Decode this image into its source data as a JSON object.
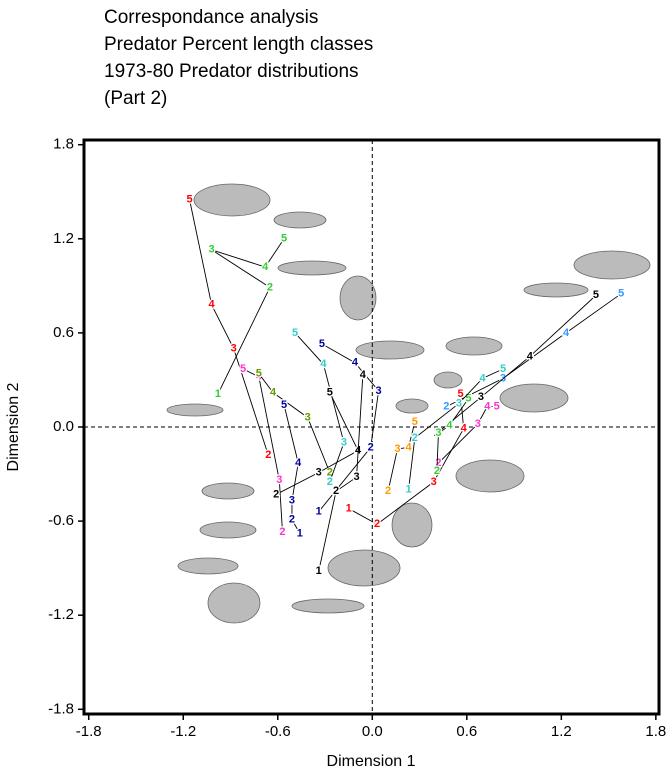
{
  "chart_data": {
    "type": "scatter",
    "title": [
      "Correspondance analysis",
      "Predator Percent length classes",
      "1973-80 Predator distributions",
      "(Part 2)"
    ],
    "xlabel": "Dimension 1",
    "ylabel": "Dimension 2",
    "xlim": [
      -1.83,
      1.82
    ],
    "ylim": [
      -1.83,
      1.83
    ],
    "xticks": [
      -1.8,
      -1.2,
      -0.6,
      {
        "value": 0,
        "label": "0.0"
      },
      0.6,
      1.2,
      1.8
    ],
    "yticks": [
      -1.8,
      -1.2,
      -0.6,
      {
        "value": 0,
        "label": "0.0"
      },
      0.6,
      1.2,
      1.8
    ],
    "series": [
      {
        "color": "#ff0000",
        "labels": [
          "5",
          "4",
          "3",
          "2"
        ],
        "x": [
          -1.16,
          -1.02,
          -0.88,
          -0.66
        ],
        "y": [
          1.45,
          0.78,
          0.5,
          -0.18
        ]
      },
      {
        "color": "#33cc33",
        "labels": [
          "1",
          "2",
          "3",
          "4",
          "5"
        ],
        "x": [
          -0.98,
          -0.65,
          -1.02,
          -0.68,
          -0.56
        ],
        "y": [
          0.21,
          0.89,
          1.13,
          1.02,
          1.2
        ]
      },
      {
        "color": "#ff33cc",
        "labels": [
          "2",
          "3",
          "4",
          "5"
        ],
        "x": [
          -0.57,
          -0.59,
          -0.72,
          -0.82
        ],
        "y": [
          -0.67,
          -0.34,
          0.32,
          0.37
        ]
      },
      {
        "color": "#669900",
        "labels": [
          "2",
          "3",
          "4",
          "5"
        ],
        "x": [
          -0.27,
          -0.41,
          -0.63,
          -0.72
        ],
        "y": [
          -0.29,
          0.06,
          0.22,
          0.34
        ]
      },
      {
        "color": "#000099",
        "labels": [
          "1",
          "2",
          "3",
          "4",
          "5"
        ],
        "x": [
          -0.46,
          -0.51,
          -0.51,
          -0.47,
          -0.56
        ],
        "y": [
          -0.68,
          -0.59,
          -0.47,
          -0.23,
          0.14
        ]
      },
      {
        "color": "#33cccc",
        "labels": [
          "2",
          "3",
          "4",
          "5"
        ],
        "x": [
          -0.27,
          -0.18,
          -0.31,
          -0.49
        ],
        "y": [
          -0.35,
          -0.1,
          0.4,
          0.6
        ]
      },
      {
        "color": "#000000",
        "labels": [
          "2",
          "3",
          "4",
          "5"
        ],
        "x": [
          -0.61,
          -0.34,
          -0.09,
          -0.27
        ],
        "y": [
          -0.43,
          -0.29,
          -0.15,
          0.22
        ]
      },
      {
        "color": "#000099",
        "labels": [
          "1",
          "2",
          "3",
          "4",
          "5"
        ],
        "x": [
          -0.34,
          -0.01,
          0.04,
          -0.11,
          -0.32
        ],
        "y": [
          -0.54,
          -0.13,
          0.23,
          0.41,
          0.53
        ]
      },
      {
        "color": "#000000",
        "labels": [
          "1",
          "2",
          "3",
          "4"
        ],
        "x": [
          -0.34,
          -0.23,
          -0.1,
          -0.06
        ],
        "y": [
          -0.92,
          -0.41,
          -0.32,
          0.33
        ]
      },
      {
        "color": "#ff0000",
        "labels": [
          "1",
          "2",
          "3",
          "4",
          "5"
        ],
        "x": [
          -0.15,
          0.03,
          0.39,
          0.58,
          0.56
        ],
        "y": [
          -0.52,
          -0.62,
          -0.35,
          -0.01,
          0.21
        ]
      },
      {
        "color": "#ff9900",
        "labels": [
          "2",
          "3",
          "4",
          "5"
        ],
        "x": [
          0.1,
          0.16,
          0.23,
          0.27
        ],
        "y": [
          -0.41,
          -0.14,
          -0.13,
          0.03
        ]
      },
      {
        "color": "#3399ff",
        "labels": [
          "2",
          "3",
          "4",
          "5"
        ],
        "x": [
          0.47,
          0.83,
          1.23,
          1.58
        ],
        "y": [
          0.13,
          0.31,
          0.6,
          0.85
        ]
      },
      {
        "color": "#000000",
        "labels": [
          "2",
          "3",
          "4",
          "5"
        ],
        "x": [
          0.41,
          0.69,
          1.0,
          1.42
        ],
        "y": [
          -0.04,
          0.19,
          0.45,
          0.84
        ]
      },
      {
        "color": "#ff33cc",
        "labels": [
          "2",
          "3",
          "4",
          "5"
        ],
        "x": [
          0.42,
          0.67,
          0.73,
          0.79
        ],
        "y": [
          -0.23,
          0.02,
          0.13,
          0.13
        ]
      },
      {
        "color": "#33cc33",
        "labels": [
          "2",
          "3",
          "4",
          "5"
        ],
        "x": [
          0.41,
          0.42,
          0.49,
          0.61
        ],
        "y": [
          -0.28,
          -0.04,
          0.01,
          0.18
        ]
      },
      {
        "color": "#33cccc",
        "labels": [
          "1",
          "2",
          "3",
          "4",
          "5"
        ],
        "x": [
          0.23,
          0.27,
          0.55,
          0.7,
          0.83
        ],
        "y": [
          -0.4,
          -0.07,
          0.15,
          0.31,
          0.37
        ]
      }
    ]
  }
}
